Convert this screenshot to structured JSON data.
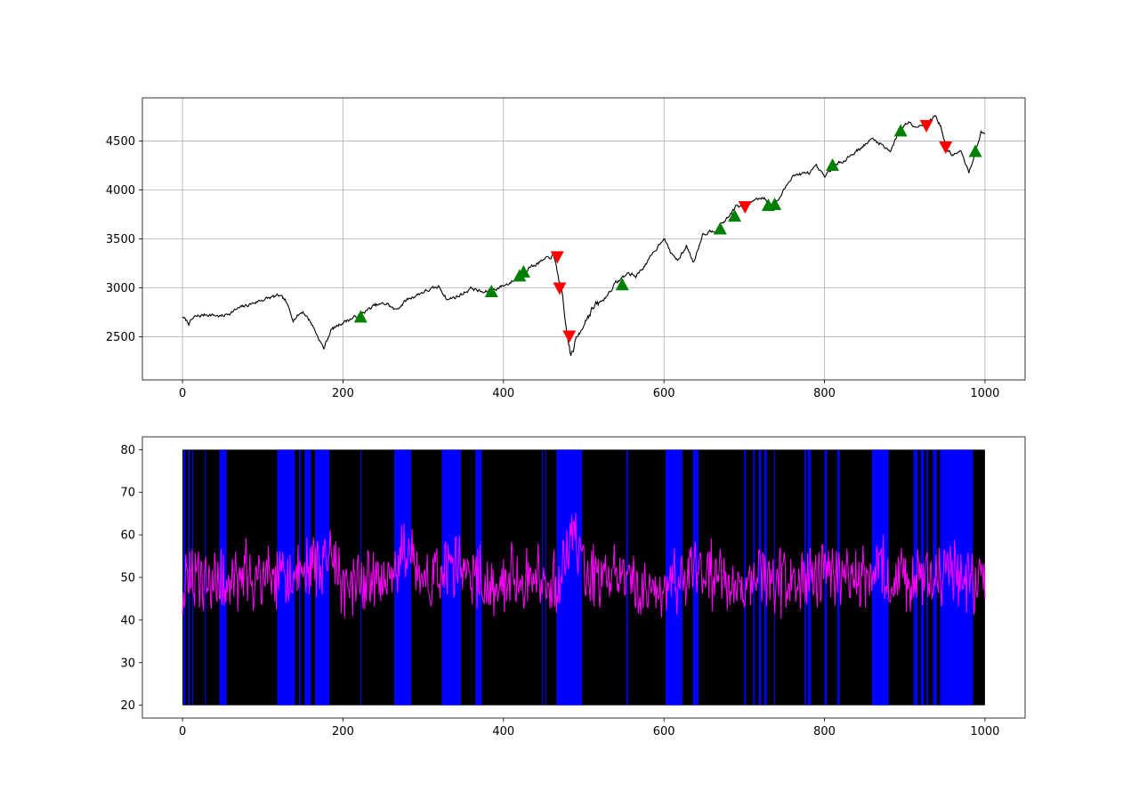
{
  "chart_data": [
    {
      "type": "line",
      "title": "",
      "xlabel": "",
      "ylabel": "",
      "xlim": [
        -50,
        1050
      ],
      "ylim": [
        2060,
        4940
      ],
      "xticks": [
        0,
        200,
        400,
        600,
        800,
        1000
      ],
      "yticks": [
        2500,
        3000,
        3500,
        4000,
        4500
      ],
      "grid": true,
      "line_color": "#000000",
      "anchors": [
        [
          0,
          2700
        ],
        [
          8,
          2640
        ],
        [
          15,
          2700
        ],
        [
          30,
          2730
        ],
        [
          50,
          2710
        ],
        [
          70,
          2790
        ],
        [
          100,
          2880
        ],
        [
          120,
          2920
        ],
        [
          128,
          2870
        ],
        [
          138,
          2680
        ],
        [
          150,
          2760
        ],
        [
          160,
          2650
        ],
        [
          176,
          2380
        ],
        [
          185,
          2570
        ],
        [
          200,
          2650
        ],
        [
          215,
          2700
        ],
        [
          240,
          2820
        ],
        [
          255,
          2840
        ],
        [
          265,
          2770
        ],
        [
          280,
          2880
        ],
        [
          300,
          2960
        ],
        [
          320,
          3010
        ],
        [
          330,
          2880
        ],
        [
          345,
          2920
        ],
        [
          360,
          3000
        ],
        [
          375,
          2950
        ],
        [
          390,
          2990
        ],
        [
          405,
          3040
        ],
        [
          420,
          3110
        ],
        [
          430,
          3200
        ],
        [
          450,
          3280
        ],
        [
          462,
          3330
        ],
        [
          468,
          3150
        ],
        [
          472,
          2970
        ],
        [
          478,
          2580
        ],
        [
          484,
          2300
        ],
        [
          490,
          2450
        ],
        [
          500,
          2650
        ],
        [
          510,
          2780
        ],
        [
          525,
          2880
        ],
        [
          540,
          3050
        ],
        [
          555,
          3150
        ],
        [
          565,
          3120
        ],
        [
          580,
          3270
        ],
        [
          592,
          3420
        ],
        [
          600,
          3520
        ],
        [
          608,
          3360
        ],
        [
          618,
          3280
        ],
        [
          628,
          3430
        ],
        [
          637,
          3260
        ],
        [
          648,
          3550
        ],
        [
          665,
          3600
        ],
        [
          680,
          3720
        ],
        [
          690,
          3840
        ],
        [
          700,
          3810
        ],
        [
          712,
          3900
        ],
        [
          725,
          3930
        ],
        [
          735,
          3820
        ],
        [
          745,
          3930
        ],
        [
          760,
          4150
        ],
        [
          780,
          4170
        ],
        [
          790,
          4230
        ],
        [
          800,
          4130
        ],
        [
          810,
          4220
        ],
        [
          830,
          4340
        ],
        [
          850,
          4460
        ],
        [
          860,
          4520
        ],
        [
          872,
          4460
        ],
        [
          882,
          4400
        ],
        [
          895,
          4620
        ],
        [
          905,
          4700
        ],
        [
          915,
          4650
        ],
        [
          928,
          4680
        ],
        [
          938,
          4760
        ],
        [
          945,
          4650
        ],
        [
          952,
          4410
        ],
        [
          960,
          4360
        ],
        [
          970,
          4390
        ],
        [
          980,
          4170
        ],
        [
          988,
          4400
        ],
        [
          995,
          4590
        ],
        [
          1000,
          4560
        ]
      ],
      "buy_markers": [
        [
          222,
          2700
        ],
        [
          385,
          2960
        ],
        [
          420,
          3120
        ],
        [
          425,
          3160
        ],
        [
          548,
          3030
        ],
        [
          670,
          3600
        ],
        [
          688,
          3730
        ],
        [
          730,
          3840
        ],
        [
          738,
          3850
        ],
        [
          810,
          4250
        ],
        [
          895,
          4600
        ],
        [
          988,
          4390
        ]
      ],
      "sell_markers": [
        [
          467,
          3320
        ],
        [
          470,
          3000
        ],
        [
          482,
          2510
        ],
        [
          701,
          3830
        ],
        [
          927,
          4660
        ],
        [
          951,
          4440
        ]
      ],
      "buy_color": "#008000",
      "sell_color": "#ff0000"
    },
    {
      "type": "line",
      "title": "",
      "xlabel": "",
      "ylabel": "",
      "xlim": [
        -50,
        1050
      ],
      "ylim": [
        17,
        83
      ],
      "xticks": [
        0,
        200,
        400,
        600,
        800,
        1000
      ],
      "yticks": [
        20,
        30,
        40,
        50,
        60,
        70,
        80
      ],
      "grid": false,
      "line_color": "#ff00ff",
      "bar_range": [
        20,
        80
      ],
      "background_color": "#000000",
      "band_color": "#0000ff",
      "blue_bands": [
        [
          1,
          3
        ],
        [
          7,
          9
        ],
        [
          12,
          13
        ],
        [
          28,
          29
        ],
        [
          46,
          55
        ],
        [
          118,
          140
        ],
        [
          145,
          147
        ],
        [
          152,
          160
        ],
        [
          165,
          183
        ],
        [
          222,
          223
        ],
        [
          264,
          285
        ],
        [
          323,
          347
        ],
        [
          365,
          373
        ],
        [
          448,
          449
        ],
        [
          452,
          453
        ],
        [
          466,
          498
        ],
        [
          553,
          555
        ],
        [
          602,
          623
        ],
        [
          636,
          643
        ],
        [
          700,
          702
        ],
        [
          711,
          713
        ],
        [
          718,
          721
        ],
        [
          725,
          728
        ],
        [
          737,
          738
        ],
        [
          775,
          777
        ],
        [
          779,
          783
        ],
        [
          800,
          803
        ],
        [
          816,
          819
        ],
        [
          859,
          880
        ],
        [
          911,
          916
        ],
        [
          920,
          924
        ],
        [
          927,
          929
        ],
        [
          935,
          940
        ],
        [
          944,
          985
        ]
      ],
      "anchors": [
        [
          0,
          47
        ],
        [
          20,
          50
        ],
        [
          40,
          49
        ],
        [
          60,
          48
        ],
        [
          80,
          50
        ],
        [
          100,
          50
        ],
        [
          120,
          49
        ],
        [
          140,
          50
        ],
        [
          160,
          52
        ],
        [
          180,
          56
        ],
        [
          200,
          48
        ],
        [
          220,
          50
        ],
        [
          240,
          48
        ],
        [
          260,
          49
        ],
        [
          270,
          53
        ],
        [
          280,
          56
        ],
        [
          300,
          49
        ],
        [
          320,
          50
        ],
        [
          340,
          53
        ],
        [
          360,
          50
        ],
        [
          380,
          48
        ],
        [
          400,
          50
        ],
        [
          420,
          49
        ],
        [
          440,
          50
        ],
        [
          460,
          48
        ],
        [
          470,
          50
        ],
        [
          480,
          56
        ],
        [
          490,
          59
        ],
        [
          500,
          52
        ],
        [
          520,
          49
        ],
        [
          540,
          52
        ],
        [
          560,
          47
        ],
        [
          580,
          48
        ],
        [
          600,
          47
        ],
        [
          620,
          50
        ],
        [
          640,
          51
        ],
        [
          660,
          50
        ],
        [
          680,
          49
        ],
        [
          700,
          47
        ],
        [
          720,
          50
        ],
        [
          740,
          49
        ],
        [
          760,
          51
        ],
        [
          780,
          50
        ],
        [
          800,
          50
        ],
        [
          820,
          49
        ],
        [
          840,
          50
        ],
        [
          860,
          51
        ],
        [
          880,
          52
        ],
        [
          900,
          49
        ],
        [
          920,
          49
        ],
        [
          940,
          50
        ],
        [
          960,
          52
        ],
        [
          980,
          49
        ],
        [
          1000,
          48
        ]
      ]
    }
  ]
}
